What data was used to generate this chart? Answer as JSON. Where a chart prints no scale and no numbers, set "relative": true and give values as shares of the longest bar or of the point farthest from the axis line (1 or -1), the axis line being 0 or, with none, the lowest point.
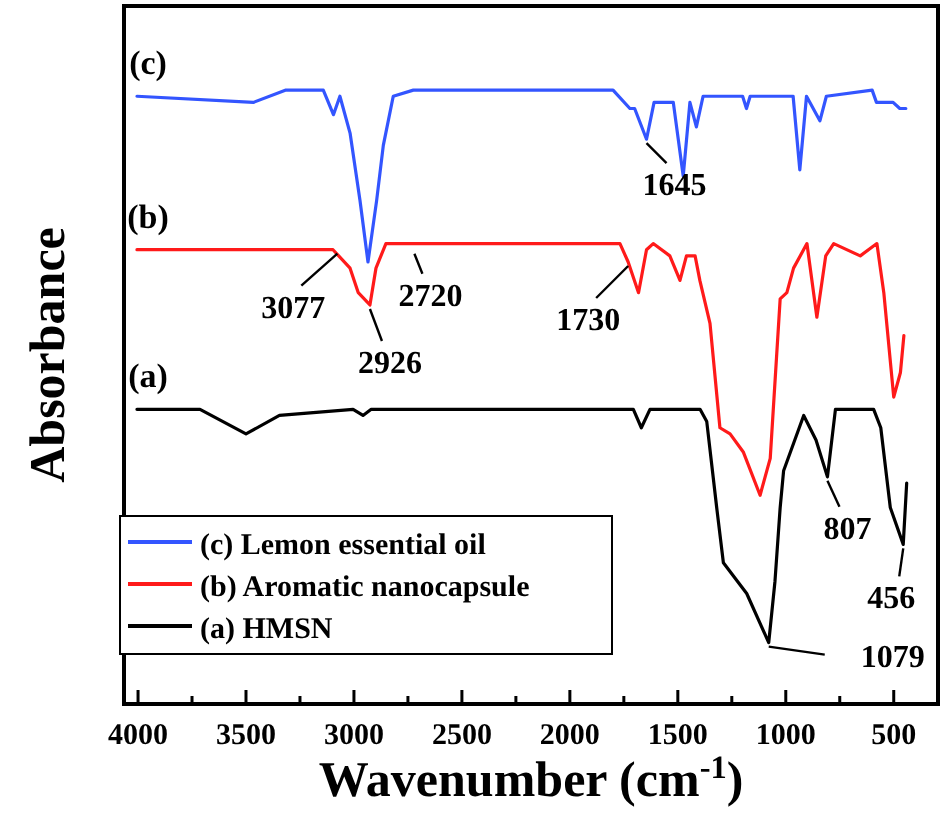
{
  "chart_data": {
    "type": "line",
    "relative": true,
    "xlabel": "Wavenumber (cm$^{-1}$)",
    "ylabel": "Absorbance",
    "xlim": [
      4065,
      295
    ],
    "xticks": [
      4000,
      {
        "value": 3750,
        "label": null
      },
      3500,
      {
        "value": 3250,
        "label": null
      },
      3000,
      {
        "value": 2750,
        "label": null
      },
      2500,
      {
        "value": 2250,
        "label": null
      },
      2000,
      {
        "value": 1750,
        "label": null
      },
      1500,
      {
        "value": 1250,
        "label": null
      },
      1000,
      {
        "value": 750,
        "label": null
      },
      500
    ],
    "tick_labels": "x",
    "grid": false,
    "legend": "bottom left",
    "line_style": "solid",
    "marker": "none",
    "series": [
      {
        "name": "(c) Lemon essential oil",
        "color": "#3355ff",
        "x": [
          4005,
          3466,
          3315,
          3142,
          3095,
          3065,
          3018,
          2972,
          2935,
          2895,
          2864,
          2818,
          2725,
          1800,
          1722,
          1700,
          1645,
          1610,
          1521,
          1475,
          1444,
          1414,
          1383,
          1200,
          1182,
          1165,
          966,
          935,
          904,
          842,
          812,
          600,
          580,
          503,
          472,
          444
        ],
        "values": [
          0.99,
          0.98,
          1.0,
          1.0,
          0.96,
          0.99,
          0.93,
          0.82,
          0.72,
          0.82,
          0.91,
          0.99,
          1.0,
          1.0,
          0.97,
          0.97,
          0.92,
          0.98,
          0.98,
          0.86,
          0.98,
          0.94,
          0.99,
          0.99,
          0.97,
          0.99,
          0.99,
          0.87,
          0.99,
          0.95,
          0.99,
          1.0,
          0.98,
          0.98,
          0.97,
          0.97
        ]
      },
      {
        "name": "(b) Aromatic nanocapsule",
        "color": "#ff1a1a",
        "x": [
          4005,
          3620,
          3466,
          3097,
          3018,
          2980,
          2926,
          2898,
          2852,
          1768,
          1730,
          1682,
          1645,
          1614,
          1537,
          1490,
          1460,
          1420,
          1398,
          1351,
          1305,
          1258,
          1196,
          1119,
          1072,
          1026,
          995,
          964,
          902,
          856,
          815,
          778,
          655,
          578,
          546,
          500,
          469,
          453
        ],
        "values": [
          0.74,
          0.74,
          0.74,
          0.74,
          0.71,
          0.67,
          0.65,
          0.71,
          0.75,
          0.75,
          0.72,
          0.67,
          0.74,
          0.75,
          0.73,
          0.69,
          0.73,
          0.73,
          0.69,
          0.62,
          0.45,
          0.44,
          0.41,
          0.34,
          0.4,
          0.66,
          0.67,
          0.71,
          0.75,
          0.63,
          0.73,
          0.75,
          0.73,
          0.75,
          0.67,
          0.5,
          0.54,
          0.6
        ]
      },
      {
        "name": "(a) HMSN",
        "color": "#000000",
        "x": [
          4005,
          3713,
          3500,
          3345,
          3004,
          2958,
          2920,
          1706,
          1669,
          1629,
          1397,
          1366,
          1320,
          1289,
          1181,
          1079,
          1050,
          1026,
          1010,
          917,
          860,
          807,
          770,
          593,
          560,
          516,
          456,
          440
        ],
        "values": [
          0.48,
          0.48,
          0.44,
          0.47,
          0.48,
          0.47,
          0.48,
          0.48,
          0.45,
          0.48,
          0.48,
          0.46,
          0.32,
          0.23,
          0.18,
          0.1,
          0.2,
          0.32,
          0.38,
          0.47,
          0.43,
          0.37,
          0.48,
          0.48,
          0.45,
          0.32,
          0.26,
          0.36
        ]
      }
    ],
    "annotations": [
      "(c)",
      "(b)",
      "(a)",
      {
        "text": "1645",
        "x": 1645,
        "y": 0.92
      },
      {
        "text": "3077",
        "x": 3077,
        "y": 0.74
      },
      {
        "text": "2926",
        "x": 2926,
        "y": 0.65
      },
      {
        "text": "2720",
        "x": 2720,
        "y": 0.74
      },
      {
        "text": "1730",
        "x": 1730,
        "y": 0.72
      },
      {
        "text": "807",
        "x": 807,
        "y": 0.37
      },
      {
        "text": "456",
        "x": 456,
        "y": 0.26
      },
      {
        "text": "1079",
        "x": 1079,
        "y": 0.1
      }
    ]
  }
}
